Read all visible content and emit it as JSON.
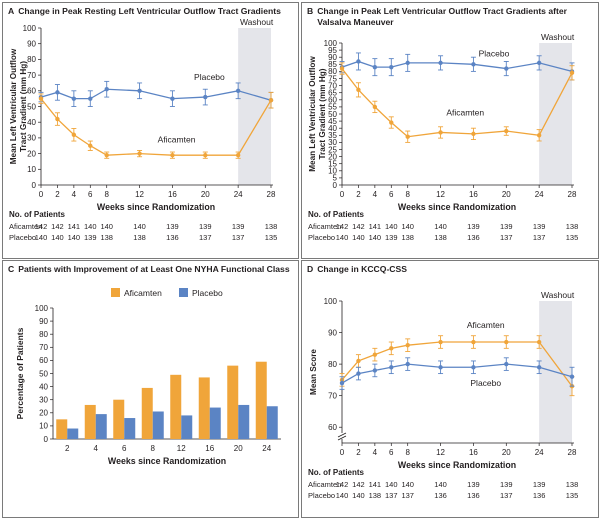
{
  "colors": {
    "afi": "#f0a53a",
    "pla": "#5b84c4",
    "washout_bg": "#e4e5ea",
    "axis": "#231f20"
  },
  "panels": {
    "A": {
      "label": "A",
      "title": "Change in Peak Resting Left Ventricular Outflow Tract Gradients"
    },
    "B": {
      "label": "B",
      "title": "Change in Peak Left Ventricular Outflow Tract Gradients after\nValsalva Maneuver"
    },
    "C": {
      "label": "C",
      "title": "Patients with Improvement of at Least One NYHA Functional Class"
    },
    "D": {
      "label": "D",
      "title": "Change in KCCQ-CSS"
    }
  },
  "patients_table": {
    "title": "No. of Patients",
    "afi_label": "Aficamten",
    "pla_label": "Placebo",
    "weeks": [
      0,
      2,
      4,
      6,
      8,
      12,
      16,
      20,
      24,
      28
    ],
    "A": {
      "afi": [
        "142",
        "142",
        "141",
        "140",
        "140",
        "140",
        "139",
        "139",
        "139",
        "138"
      ],
      "pla": [
        "140",
        "140",
        "140",
        "139",
        "138",
        "138",
        "136",
        "137",
        "137",
        "135"
      ]
    },
    "B": {
      "afi": [
        "142",
        "142",
        "141",
        "140",
        "140",
        "140",
        "139",
        "139",
        "139",
        "138"
      ],
      "pla": [
        "140",
        "140",
        "140",
        "139",
        "138",
        "138",
        "136",
        "137",
        "137",
        "135"
      ]
    },
    "D": {
      "afi": [
        "142",
        "142",
        "141",
        "140",
        "140",
        "140",
        "139",
        "139",
        "139",
        "138"
      ],
      "pla": [
        "140",
        "140",
        "138",
        "137",
        "137",
        "136",
        "136",
        "137",
        "136",
        "135"
      ]
    }
  },
  "chart_data": [
    {
      "id": "A",
      "type": "line",
      "title": "Change in Peak Resting Left Ventricular Outflow Tract Gradients",
      "xlabel": "Weeks since Randomization",
      "ylabel": "Mean Left Ventricular Outflow Tract Gradient (mm Hg)",
      "x": [
        0,
        2,
        4,
        6,
        8,
        12,
        16,
        20,
        24,
        28
      ],
      "xlim": [
        0,
        28
      ],
      "ylim": [
        0,
        100
      ],
      "yticks": [
        0,
        10,
        20,
        30,
        40,
        50,
        60,
        70,
        80,
        90,
        100
      ],
      "washout": {
        "label": "Washout",
        "from": 24,
        "to": 28
      },
      "series": [
        {
          "name": "Placebo",
          "key": "pla",
          "values": [
            56,
            59,
            55,
            55,
            61,
            60,
            55,
            56,
            60,
            54
          ],
          "errors": [
            3,
            5,
            5,
            5,
            5,
            5,
            5,
            5,
            5,
            5
          ]
        },
        {
          "name": "Aficamten",
          "key": "afi",
          "values": [
            55,
            42,
            32,
            25,
            19,
            20,
            19,
            19,
            19,
            54
          ],
          "errors": [
            3,
            4,
            4,
            3,
            2,
            2,
            2,
            2,
            2,
            5
          ]
        }
      ],
      "series_labels": [
        {
          "name": "Placebo",
          "x": 20.5,
          "y": 67
        },
        {
          "name": "Aficamten",
          "x": 16.5,
          "y": 27
        }
      ]
    },
    {
      "id": "B",
      "type": "line",
      "title": "Change in Peak Left Ventricular Outflow Tract Gradients after Valsalva Maneuver",
      "xlabel": "Weeks since Randomization",
      "ylabel": "Mean Left Ventricular Outflow Tract Gradient (mm Hg)",
      "x": [
        0,
        2,
        4,
        6,
        8,
        12,
        16,
        20,
        24,
        28
      ],
      "xlim": [
        0,
        28
      ],
      "ylim": [
        0,
        100
      ],
      "yticks": [
        0,
        5,
        10,
        15,
        20,
        25,
        30,
        35,
        40,
        45,
        50,
        55,
        60,
        65,
        70,
        75,
        80,
        85,
        90,
        95,
        100
      ],
      "washout": {
        "label": "Washout",
        "from": 24,
        "to": 28
      },
      "series": [
        {
          "name": "Placebo",
          "key": "pla",
          "values": [
            83,
            87,
            83,
            83,
            86,
            86,
            85,
            82,
            86,
            80
          ],
          "errors": [
            4,
            6,
            6,
            6,
            6,
            5,
            5,
            5,
            5,
            6
          ]
        },
        {
          "name": "Aficamten",
          "key": "afi",
          "values": [
            82,
            67,
            55,
            44,
            34,
            37,
            36,
            38,
            35,
            79
          ],
          "errors": [
            4,
            5,
            4,
            4,
            4,
            4,
            4,
            3,
            4,
            5
          ]
        }
      ],
      "series_labels": [
        {
          "name": "Placebo",
          "x": 18.5,
          "y": 90.5
        },
        {
          "name": "Aficamten",
          "x": 15,
          "y": 49
        }
      ]
    },
    {
      "id": "C",
      "type": "bar",
      "title": "Patients with Improvement of at Least One NYHA Functional Class",
      "xlabel": "Weeks since Randomization",
      "ylabel": "Percentage of Patients",
      "categories": [
        "2",
        "4",
        "6",
        "8",
        "12",
        "16",
        "20",
        "24"
      ],
      "ylim": [
        0,
        100
      ],
      "yticks": [
        0,
        10,
        20,
        30,
        40,
        50,
        60,
        70,
        80,
        90,
        100
      ],
      "legend": "top-center",
      "series": [
        {
          "name": "Aficamten",
          "key": "afi",
          "values": [
            15,
            26,
            30,
            39,
            49,
            47,
            56,
            59
          ]
        },
        {
          "name": "Placebo",
          "key": "pla",
          "values": [
            8,
            19,
            16,
            21,
            18,
            24,
            26,
            25
          ]
        }
      ]
    },
    {
      "id": "D",
      "type": "line",
      "title": "Change in KCCQ-CSS",
      "xlabel": "Weeks since Randomization",
      "ylabel": "Mean Score",
      "x": [
        0,
        2,
        4,
        6,
        8,
        12,
        16,
        20,
        24,
        28
      ],
      "xlim": [
        0,
        28
      ],
      "ylim": [
        55,
        100
      ],
      "yticks": [
        60,
        70,
        80,
        90,
        100
      ],
      "ytick_labels": [
        "60",
        "70",
        "80",
        "90",
        "100"
      ],
      "axis_break": true,
      "washout": {
        "label": "Washout",
        "from": 24,
        "to": 28
      },
      "series": [
        {
          "name": "Aficamten",
          "key": "afi",
          "values": [
            75,
            81,
            83,
            85,
            86,
            87,
            87,
            87,
            87,
            73
          ],
          "errors": [
            2,
            2,
            2,
            2,
            2,
            2,
            2,
            2,
            2,
            3
          ]
        },
        {
          "name": "Placebo",
          "key": "pla",
          "values": [
            74,
            77,
            78,
            79,
            80,
            79,
            79,
            80,
            79,
            76
          ],
          "errors": [
            2,
            2,
            2,
            2,
            2,
            2,
            2,
            2,
            2,
            3
          ]
        }
      ],
      "series_labels": [
        {
          "name": "Aficamten",
          "x": 17.5,
          "y": 91.5
        },
        {
          "name": "Placebo",
          "x": 17.5,
          "y": 73
        }
      ]
    }
  ]
}
